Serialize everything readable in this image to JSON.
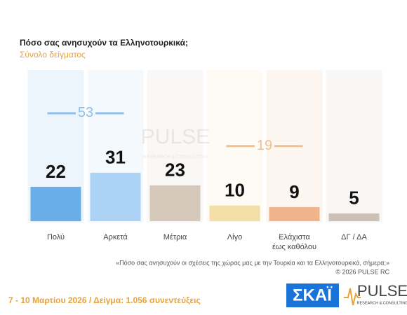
{
  "chart_data": {
    "type": "bar",
    "title": "Πόσο σας ανησυχούν τα Ελληνοτουρκικά;",
    "subtitle": "Σύνολο δείγματος",
    "categories": [
      "Πολύ",
      "Αρκετά",
      "Μέτρια",
      "Λίγο",
      "Ελάχιστα\nέως καθόλου",
      "ΔΓ / ΔΑ"
    ],
    "values": [
      22,
      31,
      23,
      10,
      9,
      5
    ],
    "colors": [
      "#6aaee8",
      "#acd2f5",
      "#d6c9bb",
      "#f2dea6",
      "#efb48b",
      "#cdc1b5"
    ],
    "groups": [
      {
        "value": 53,
        "from": 0,
        "to": 1,
        "color": "#8fbfea"
      },
      {
        "value": 19,
        "from": 3,
        "to": 4,
        "color": "#f2c08f"
      }
    ],
    "footnote": "«Πόσο σας ανησυχούν οι σχέσεις της χώρας μας με την Τουρκία και τα Ελληνοτουρκικά, σήμερα;»",
    "copyright": "©  2026  PULSE RC",
    "fieldwork": "7 - 10  Μαρτίου 2026  /  Δείγμα:  1.056 συνεντεύξεις"
  },
  "logos": {
    "channel": "ΣΚΑΪ",
    "pulse": "PULSE",
    "pulse_tagline": "RESEARCH & CONSULTING"
  }
}
